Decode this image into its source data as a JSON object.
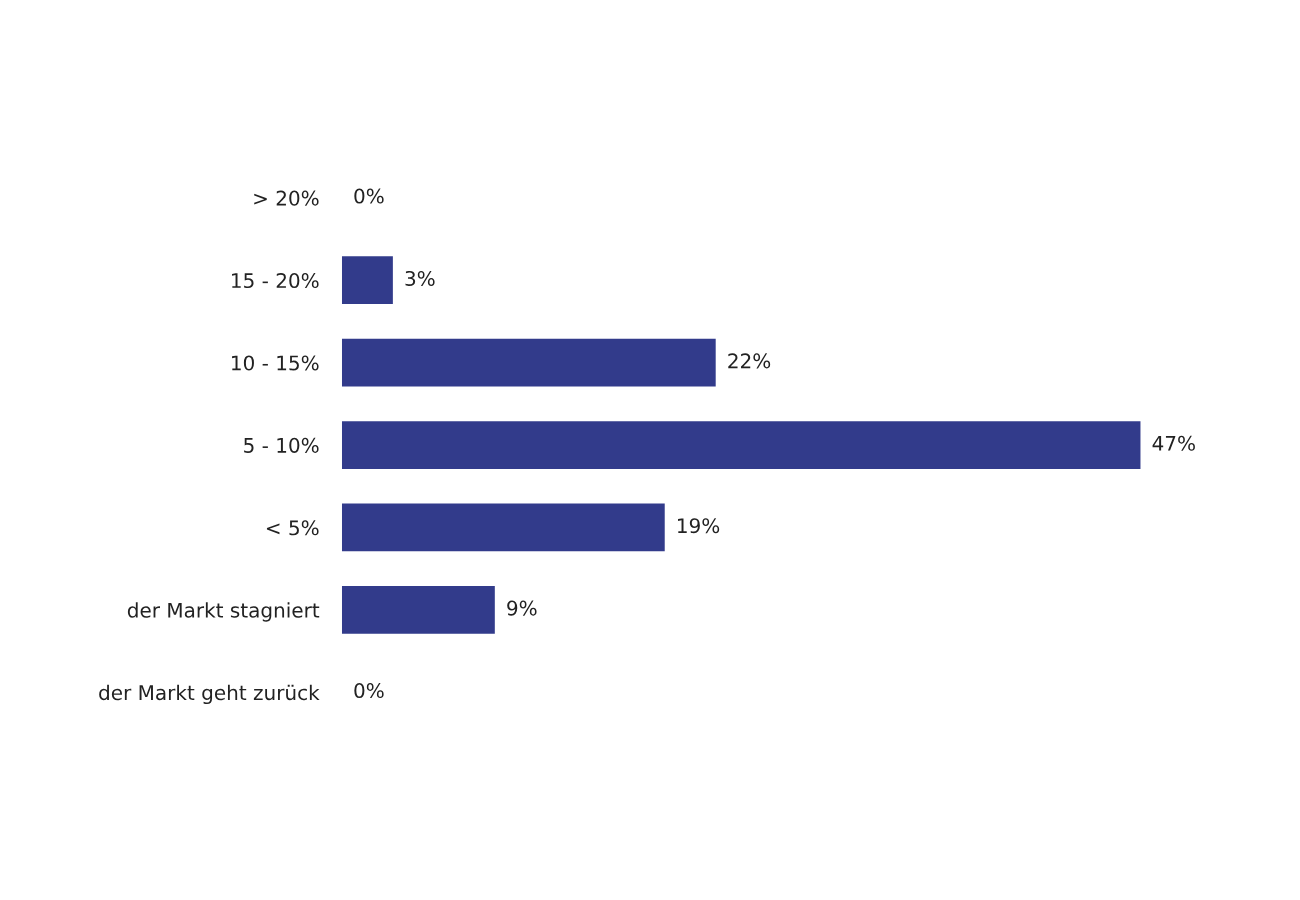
{
  "chart_data": {
    "type": "bar",
    "orientation": "horizontal",
    "categories": [
      "> 20%",
      "15 - 20%",
      "10 - 15%",
      "5 - 10%",
      "< 5%",
      "der Markt stagniert",
      "der Markt geht zurück"
    ],
    "values": [
      0,
      3,
      22,
      47,
      19,
      9,
      0
    ],
    "value_labels": [
      "0%",
      "3%",
      "22%",
      "47%",
      "19%",
      "9%",
      "0%"
    ],
    "color": "#323b8b",
    "tick_labels": "y",
    "grid": false,
    "legend": false
  }
}
